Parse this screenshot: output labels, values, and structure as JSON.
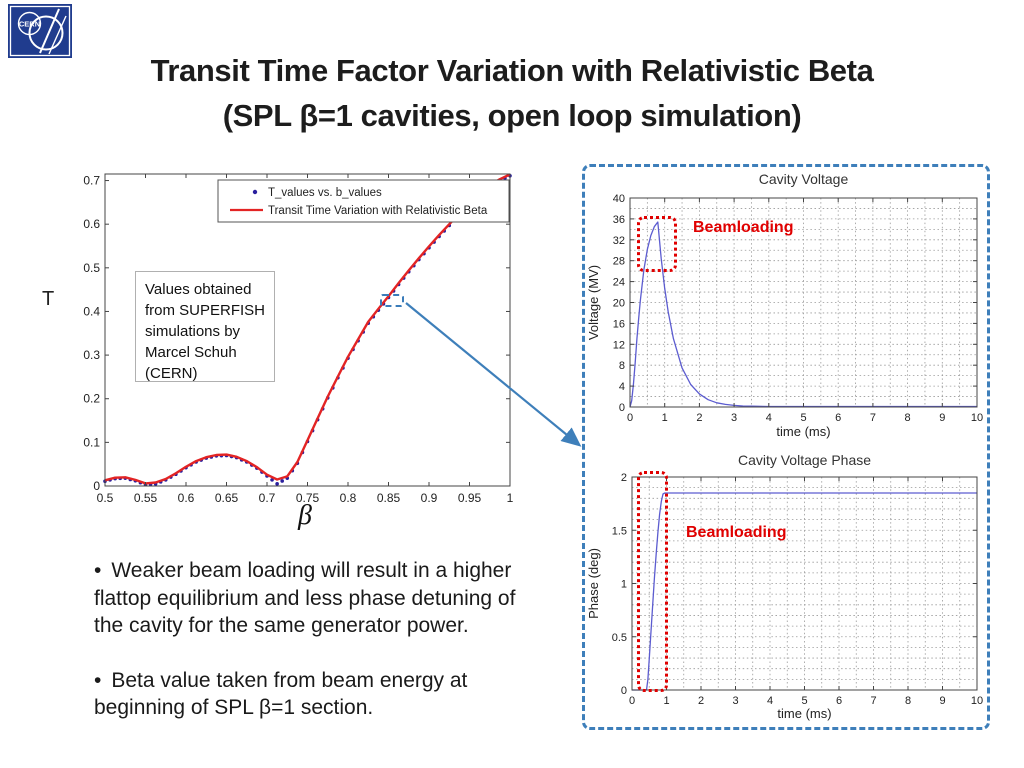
{
  "slide": {
    "title_line1": "Transit Time Factor Variation with Relativistic Beta",
    "title_line2": "(SPL β=1 cavities, open loop simulation)",
    "logo_text": "CERN",
    "bullet_marker": "•",
    "bullets": [
      "Weaker beam loading will result in a higher flattop equilibrium and less phase detuning of the cavity for the same generator power.",
      "Beta value taken from beam energy at beginning of SPL β=1 section."
    ]
  },
  "annotations": {
    "values_source": "Values obtained from SUPERFISH simulations by Marcel Schuh (CERN)",
    "beamloading": "Beamloading"
  },
  "colors": {
    "panel_border": "#3e7fba",
    "arrow": "#3e7fba",
    "beamloading_red": "#e00000",
    "transit_line_red": "#e32424",
    "transit_dots_blue": "#2a1f9e",
    "curve_blue": "#5c5cd0",
    "logo_blue": "#203c8e"
  },
  "chart_data": [
    {
      "id": "transit",
      "type": "line",
      "title": "",
      "xlabel": "β",
      "ylabel": "T",
      "xlim": [
        0.5,
        1.0
      ],
      "ylim": [
        0,
        0.715
      ],
      "xticks": [
        0.5,
        0.55,
        0.6,
        0.65,
        0.7,
        0.75,
        0.8,
        0.85,
        0.9,
        0.95,
        1
      ],
      "yticks": [
        0,
        0.1,
        0.2,
        0.3,
        0.4,
        0.5,
        0.6,
        0.7
      ],
      "grid": false,
      "legend_position": "top-right-inside",
      "x": [
        0.5,
        0.5125,
        0.525,
        0.5375,
        0.55,
        0.5625,
        0.575,
        0.5875,
        0.6,
        0.6125,
        0.625,
        0.6375,
        0.65,
        0.6625,
        0.675,
        0.6875,
        0.7,
        0.7125,
        0.725,
        0.7375,
        0.75,
        0.7625,
        0.775,
        0.7875,
        0.8,
        0.8125,
        0.825,
        0.8375,
        0.85,
        0.8625,
        0.875,
        0.8875,
        0.9,
        0.9125,
        0.925,
        0.9375,
        0.95,
        0.9625,
        0.975,
        0.9875,
        1
      ],
      "series": [
        {
          "name": "T_values vs. b_values",
          "type": "scatter",
          "color": "#2a1f9e",
          "values": [
            0.011,
            0.017,
            0.018,
            0.012,
            0.003,
            0.005,
            0.014,
            0.027,
            0.042,
            0.055,
            0.064,
            0.069,
            0.07,
            0.065,
            0.055,
            0.041,
            0.023,
            0.005,
            0.018,
            0.052,
            0.102,
            0.152,
            0.202,
            0.248,
            0.293,
            0.333,
            0.373,
            0.403,
            0.432,
            0.462,
            0.491,
            0.519,
            0.546,
            0.572,
            0.597,
            0.621,
            0.644,
            0.666,
            0.687,
            0.7,
            0.711
          ]
        },
        {
          "name": "Transit Time Variation with Relativistic Beta",
          "type": "line",
          "color": "#e32424",
          "values": [
            0.013,
            0.019,
            0.02,
            0.014,
            0.006,
            0.008,
            0.016,
            0.029,
            0.044,
            0.057,
            0.066,
            0.071,
            0.072,
            0.067,
            0.057,
            0.043,
            0.026,
            0.015,
            0.022,
            0.055,
            0.105,
            0.155,
            0.205,
            0.251,
            0.296,
            0.336,
            0.376,
            0.406,
            0.435,
            0.465,
            0.494,
            0.522,
            0.549,
            0.575,
            0.6,
            0.624,
            0.647,
            0.669,
            0.69,
            0.703,
            0.714
          ]
        }
      ],
      "callout_point": {
        "beta": 0.85,
        "T": 0.435
      }
    },
    {
      "id": "voltage",
      "type": "line",
      "title": "Cavity Voltage",
      "xlabel": "time (ms)",
      "ylabel": "Voltage (MV)",
      "xlim": [
        0,
        10
      ],
      "ylim": [
        0,
        40
      ],
      "xticks": [
        0,
        1,
        2,
        3,
        4,
        5,
        6,
        7,
        8,
        9,
        10
      ],
      "yticks": [
        0,
        4,
        8,
        12,
        16,
        20,
        24,
        28,
        32,
        36,
        40
      ],
      "grid": true,
      "grid_x_step": 0.5,
      "grid_y_step": 2,
      "x": [
        0,
        0.05,
        0.1,
        0.15,
        0.2,
        0.25,
        0.3,
        0.4,
        0.5,
        0.6,
        0.7,
        0.8,
        0.9,
        1.0,
        1.1,
        1.25,
        1.5,
        1.75,
        2,
        2.25,
        2.5,
        2.75,
        3,
        3.25,
        3.5,
        4,
        4.5,
        5,
        6,
        7,
        8,
        9,
        10
      ],
      "series": [
        {
          "name": "Cavity Voltage",
          "type": "line",
          "color": "#5c5cd0",
          "values": [
            0,
            1.2,
            4.5,
            8.5,
            13,
            17,
            20.5,
            26.3,
            30.2,
            32.8,
            34.5,
            35.4,
            28.4,
            22.7,
            18.2,
            13.1,
            7.5,
            4.3,
            2.5,
            1.4,
            0.8,
            0.5,
            0.3,
            0.2,
            0.15,
            0.1,
            0.1,
            0.1,
            0.1,
            0.1,
            0.1,
            0.1,
            0.1
          ]
        }
      ]
    },
    {
      "id": "phase",
      "type": "line",
      "title": "Cavity Voltage Phase",
      "xlabel": "time (ms)",
      "ylabel": "Phase (deg)",
      "xlim": [
        0,
        10
      ],
      "ylim": [
        0,
        2
      ],
      "xticks": [
        0,
        1,
        2,
        3,
        4,
        5,
        6,
        7,
        8,
        9,
        10
      ],
      "yticks": [
        0,
        0.5,
        1,
        1.5,
        2
      ],
      "grid": true,
      "grid_x_step": 0.5,
      "grid_y_step": 0.1,
      "x": [
        0,
        0.42,
        0.46,
        0.5,
        0.55,
        0.6,
        0.65,
        0.7,
        0.75,
        0.8,
        0.85,
        0.9,
        0.95,
        1,
        2,
        3,
        4,
        5,
        6,
        7,
        8,
        9,
        10
      ],
      "series": [
        {
          "name": "Cavity Voltage Phase",
          "type": "line",
          "color": "#5c5cd0",
          "values": [
            0,
            0,
            0.1,
            0.3,
            0.55,
            0.8,
            1.05,
            1.28,
            1.48,
            1.65,
            1.77,
            1.84,
            1.85,
            1.85,
            1.85,
            1.85,
            1.85,
            1.85,
            1.85,
            1.85,
            1.85,
            1.85,
            1.85
          ]
        }
      ]
    }
  ]
}
